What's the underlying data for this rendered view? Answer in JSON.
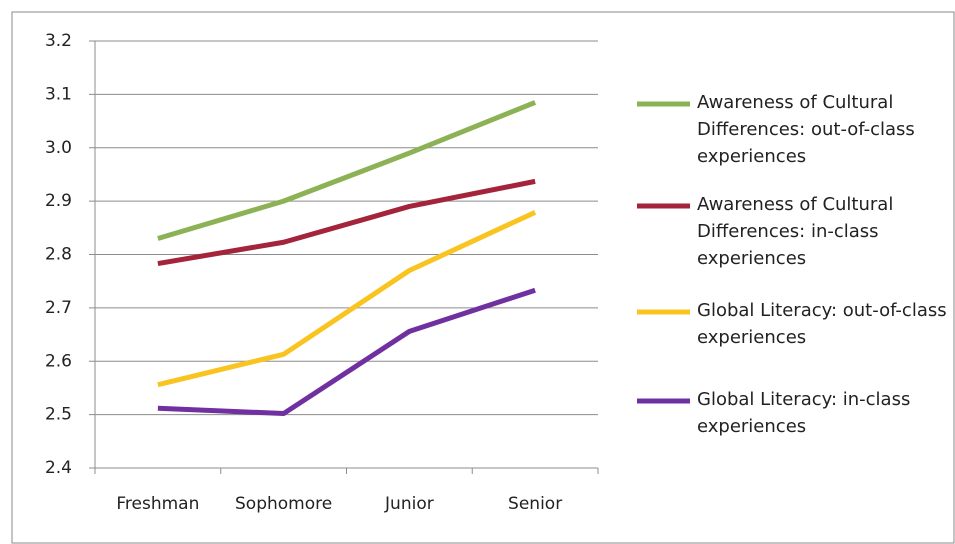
{
  "chart_data": {
    "type": "line",
    "categories": [
      "Freshman",
      "Sophomore",
      "Junior",
      "Senior"
    ],
    "series": [
      {
        "name": "Awareness of Cultural Differences: out-of-class experiences",
        "color": "#8db255",
        "values": [
          2.83,
          2.9,
          2.99,
          3.085
        ]
      },
      {
        "name": "Awareness of Cultural Differences: in-class experiences",
        "color": "#a3243b",
        "values": [
          2.783,
          2.823,
          2.89,
          2.937
        ]
      },
      {
        "name": "Global Literacy: out-of-class experiences",
        "color": "#f9c320",
        "values": [
          2.556,
          2.613,
          2.77,
          2.879
        ]
      },
      {
        "name": "Global Literacy: in-class experiences",
        "color": "#7030a0",
        "values": [
          2.512,
          2.502,
          2.656,
          2.733
        ]
      }
    ],
    "ylim": [
      2.4,
      3.2
    ],
    "yticks": [
      2.4,
      2.5,
      2.6,
      2.7,
      2.8,
      2.9,
      {
        "value": 3.0,
        "label": "3.0"
      },
      3.1,
      3.2
    ],
    "grid": true
  }
}
